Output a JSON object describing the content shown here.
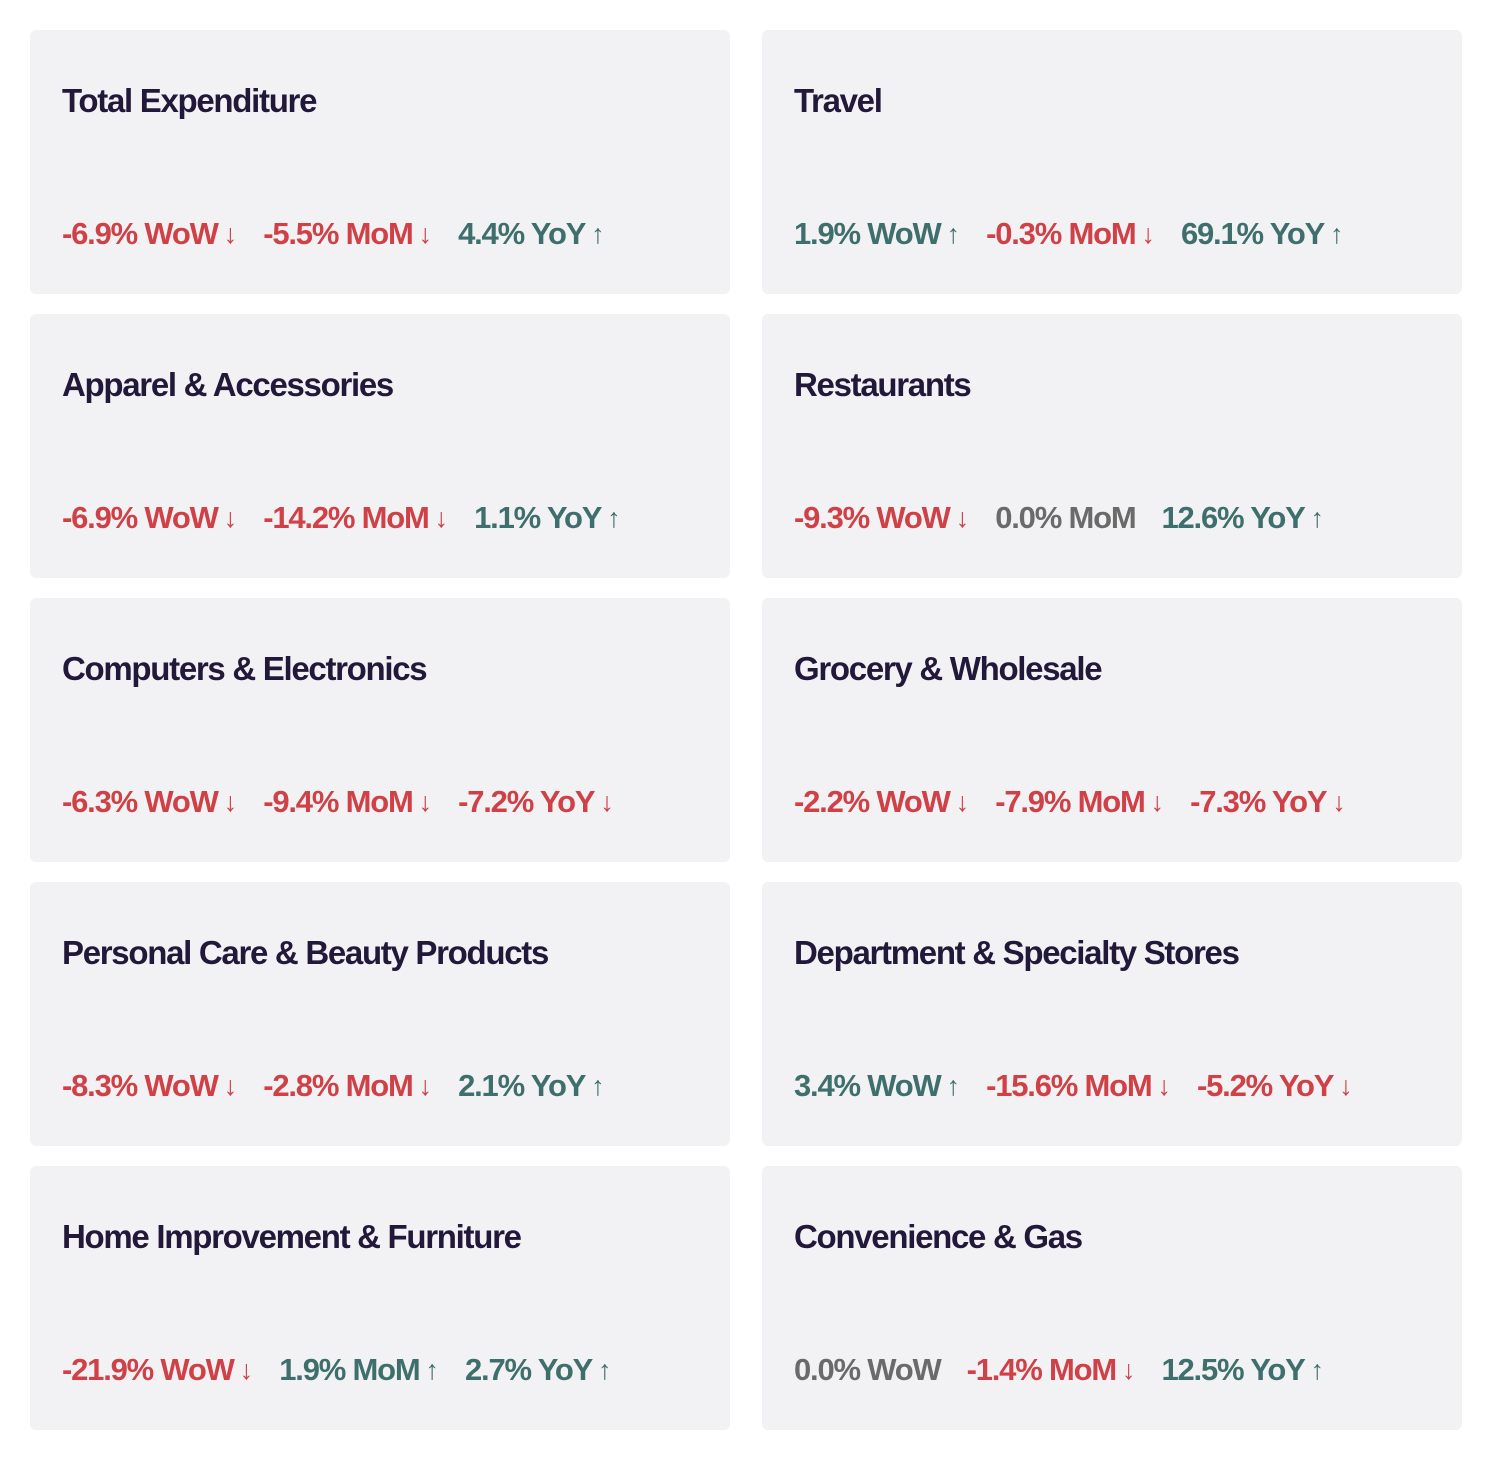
{
  "cards": [
    {
      "title": "Total Expenditure",
      "metrics": [
        {
          "text": "-6.9% WoW",
          "direction": "down",
          "arrow": "↓"
        },
        {
          "text": "-5.5% MoM",
          "direction": "down",
          "arrow": "↓"
        },
        {
          "text": "4.4% YoY",
          "direction": "up",
          "arrow": "↑"
        }
      ]
    },
    {
      "title": "Travel",
      "metrics": [
        {
          "text": "1.9% WoW",
          "direction": "up",
          "arrow": "↑"
        },
        {
          "text": "-0.3% MoM",
          "direction": "down",
          "arrow": "↓"
        },
        {
          "text": "69.1% YoY",
          "direction": "up",
          "arrow": "↑"
        }
      ]
    },
    {
      "title": "Apparel & Accessories",
      "metrics": [
        {
          "text": "-6.9% WoW",
          "direction": "down",
          "arrow": "↓"
        },
        {
          "text": "-14.2% MoM",
          "direction": "down",
          "arrow": "↓"
        },
        {
          "text": "1.1% YoY",
          "direction": "up",
          "arrow": "↑"
        }
      ]
    },
    {
      "title": "Restaurants",
      "metrics": [
        {
          "text": "-9.3% WoW",
          "direction": "down",
          "arrow": "↓"
        },
        {
          "text": "0.0% MoM",
          "direction": "flat",
          "arrow": ""
        },
        {
          "text": "12.6% YoY",
          "direction": "up",
          "arrow": "↑"
        }
      ]
    },
    {
      "title": "Computers & Electronics",
      "metrics": [
        {
          "text": "-6.3% WoW",
          "direction": "down",
          "arrow": "↓"
        },
        {
          "text": "-9.4% MoM",
          "direction": "down",
          "arrow": "↓"
        },
        {
          "text": "-7.2% YoY",
          "direction": "down",
          "arrow": "↓"
        }
      ]
    },
    {
      "title": "Grocery & Wholesale",
      "metrics": [
        {
          "text": "-2.2% WoW",
          "direction": "down",
          "arrow": "↓"
        },
        {
          "text": "-7.9% MoM",
          "direction": "down",
          "arrow": "↓"
        },
        {
          "text": "-7.3% YoY",
          "direction": "down",
          "arrow": "↓"
        }
      ]
    },
    {
      "title": "Personal Care & Beauty Products",
      "metrics": [
        {
          "text": "-8.3% WoW",
          "direction": "down",
          "arrow": "↓"
        },
        {
          "text": "-2.8% MoM",
          "direction": "down",
          "arrow": "↓"
        },
        {
          "text": "2.1% YoY",
          "direction": "up",
          "arrow": "↑"
        }
      ]
    },
    {
      "title": "Department & Specialty Stores",
      "metrics": [
        {
          "text": "3.4% WoW",
          "direction": "up",
          "arrow": "↑"
        },
        {
          "text": "-15.6% MoM",
          "direction": "down",
          "arrow": "↓"
        },
        {
          "text": "-5.2% YoY",
          "direction": "down",
          "arrow": "↓"
        }
      ]
    },
    {
      "title": "Home Improvement & Furniture",
      "metrics": [
        {
          "text": "-21.9% WoW",
          "direction": "down",
          "arrow": "↓"
        },
        {
          "text": "1.9% MoM",
          "direction": "up",
          "arrow": "↑"
        },
        {
          "text": "2.7% YoY",
          "direction": "up",
          "arrow": "↑"
        }
      ]
    },
    {
      "title": "Convenience & Gas",
      "metrics": [
        {
          "text": "0.0% WoW",
          "direction": "flat",
          "arrow": ""
        },
        {
          "text": "-1.4% MoM",
          "direction": "down",
          "arrow": "↓"
        },
        {
          "text": "12.5% YoY",
          "direction": "up",
          "arrow": "↑"
        }
      ]
    }
  ],
  "colors": {
    "down": "#cf4147",
    "up": "#3f6f6d",
    "flat": "#6a6a6a",
    "title": "#22183a",
    "card_bg": "#f2f2f4"
  }
}
